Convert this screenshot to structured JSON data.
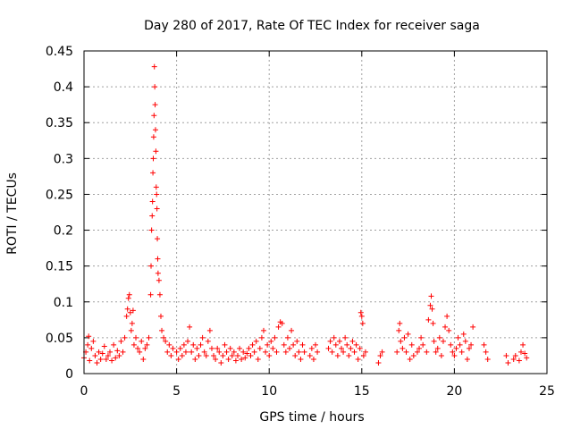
{
  "chart_data": {
    "type": "scatter",
    "title": "Day 280 of 2017, Rate Of TEC Index for receiver saga",
    "xlabel": "GPS time / hours",
    "ylabel": "ROTI / TECUs",
    "xlim": [
      0,
      25
    ],
    "ylim": [
      0,
      0.45
    ],
    "grid": true,
    "marker": "plus",
    "marker_color": "#ff0000",
    "x_ticks": [
      0,
      5,
      10,
      15,
      20,
      25
    ],
    "x_tick_labels": [
      "0",
      "5",
      "10",
      "15",
      "20",
      "25"
    ],
    "y_ticks": [
      0,
      0.05,
      0.1,
      0.15,
      0.2,
      0.25,
      0.3,
      0.35,
      0.4,
      0.45
    ],
    "y_tick_labels": [
      "0",
      "0.05",
      "0.1",
      "0.15",
      "0.2",
      "0.25",
      "0.3",
      "0.35",
      "0.4",
      "0.45"
    ],
    "series": [
      {
        "name": "ROTI",
        "points": [
          [
            0.0,
            0.022
          ],
          [
            0.1,
            0.03
          ],
          [
            0.2,
            0.04
          ],
          [
            0.25,
            0.052
          ],
          [
            0.3,
            0.018
          ],
          [
            0.4,
            0.035
          ],
          [
            0.5,
            0.045
          ],
          [
            0.6,
            0.025
          ],
          [
            0.7,
            0.015
          ],
          [
            0.8,
            0.03
          ],
          [
            0.9,
            0.02
          ],
          [
            1.0,
            0.028
          ],
          [
            1.1,
            0.038
          ],
          [
            1.2,
            0.02
          ],
          [
            1.3,
            0.025
          ],
          [
            1.4,
            0.03
          ],
          [
            1.5,
            0.018
          ],
          [
            1.6,
            0.04
          ],
          [
            1.7,
            0.022
          ],
          [
            1.8,
            0.032
          ],
          [
            1.9,
            0.025
          ],
          [
            2.0,
            0.045
          ],
          [
            2.1,
            0.03
          ],
          [
            2.2,
            0.05
          ],
          [
            2.3,
            0.08
          ],
          [
            2.35,
            0.09
          ],
          [
            2.4,
            0.105
          ],
          [
            2.45,
            0.11
          ],
          [
            2.5,
            0.085
          ],
          [
            2.55,
            0.06
          ],
          [
            2.6,
            0.07
          ],
          [
            2.65,
            0.088
          ],
          [
            2.7,
            0.04
          ],
          [
            2.8,
            0.05
          ],
          [
            2.9,
            0.035
          ],
          [
            3.0,
            0.03
          ],
          [
            3.1,
            0.045
          ],
          [
            3.2,
            0.02
          ],
          [
            3.3,
            0.035
          ],
          [
            3.4,
            0.04
          ],
          [
            3.5,
            0.05
          ],
          [
            3.6,
            0.11
          ],
          [
            3.62,
            0.15
          ],
          [
            3.65,
            0.2
          ],
          [
            3.68,
            0.22
          ],
          [
            3.7,
            0.24
          ],
          [
            3.72,
            0.28
          ],
          [
            3.74,
            0.3
          ],
          [
            3.76,
            0.33
          ],
          [
            3.78,
            0.36
          ],
          [
            3.8,
            0.428
          ],
          [
            3.82,
            0.4
          ],
          [
            3.84,
            0.375
          ],
          [
            3.86,
            0.34
          ],
          [
            3.88,
            0.31
          ],
          [
            3.9,
            0.26
          ],
          [
            3.92,
            0.25
          ],
          [
            3.94,
            0.23
          ],
          [
            3.96,
            0.188
          ],
          [
            3.98,
            0.16
          ],
          [
            4.0,
            0.14
          ],
          [
            4.05,
            0.13
          ],
          [
            4.1,
            0.11
          ],
          [
            4.15,
            0.08
          ],
          [
            4.2,
            0.06
          ],
          [
            4.3,
            0.05
          ],
          [
            4.4,
            0.045
          ],
          [
            4.5,
            0.03
          ],
          [
            4.6,
            0.04
          ],
          [
            4.7,
            0.025
          ],
          [
            4.8,
            0.035
          ],
          [
            5.0,
            0.03
          ],
          [
            5.1,
            0.02
          ],
          [
            5.2,
            0.035
          ],
          [
            5.3,
            0.025
          ],
          [
            5.4,
            0.04
          ],
          [
            5.5,
            0.03
          ],
          [
            5.6,
            0.045
          ],
          [
            5.7,
            0.065
          ],
          [
            5.8,
            0.03
          ],
          [
            5.9,
            0.04
          ],
          [
            6.0,
            0.02
          ],
          [
            6.1,
            0.035
          ],
          [
            6.2,
            0.025
          ],
          [
            6.3,
            0.04
          ],
          [
            6.4,
            0.05
          ],
          [
            6.5,
            0.03
          ],
          [
            6.6,
            0.025
          ],
          [
            6.7,
            0.045
          ],
          [
            6.8,
            0.06
          ],
          [
            6.9,
            0.035
          ],
          [
            7.0,
            0.025
          ],
          [
            7.1,
            0.02
          ],
          [
            7.2,
            0.035
          ],
          [
            7.3,
            0.03
          ],
          [
            7.4,
            0.015
          ],
          [
            7.5,
            0.025
          ],
          [
            7.6,
            0.04
          ],
          [
            7.7,
            0.03
          ],
          [
            7.8,
            0.02
          ],
          [
            7.9,
            0.035
          ],
          [
            8.0,
            0.025
          ],
          [
            8.1,
            0.03
          ],
          [
            8.2,
            0.018
          ],
          [
            8.3,
            0.025
          ],
          [
            8.4,
            0.035
          ],
          [
            8.5,
            0.02
          ],
          [
            8.6,
            0.03
          ],
          [
            8.7,
            0.022
          ],
          [
            8.8,
            0.028
          ],
          [
            8.9,
            0.035
          ],
          [
            9.0,
            0.025
          ],
          [
            9.1,
            0.04
          ],
          [
            9.2,
            0.03
          ],
          [
            9.3,
            0.045
          ],
          [
            9.4,
            0.02
          ],
          [
            9.5,
            0.035
          ],
          [
            9.6,
            0.05
          ],
          [
            9.7,
            0.06
          ],
          [
            9.8,
            0.03
          ],
          [
            9.9,
            0.04
          ],
          [
            10.0,
            0.025
          ],
          [
            10.1,
            0.045
          ],
          [
            10.2,
            0.035
          ],
          [
            10.3,
            0.05
          ],
          [
            10.4,
            0.03
          ],
          [
            10.5,
            0.065
          ],
          [
            10.6,
            0.072
          ],
          [
            10.7,
            0.07
          ],
          [
            10.8,
            0.04
          ],
          [
            10.9,
            0.03
          ],
          [
            11.0,
            0.05
          ],
          [
            11.1,
            0.035
          ],
          [
            11.2,
            0.06
          ],
          [
            11.3,
            0.04
          ],
          [
            11.4,
            0.025
          ],
          [
            11.5,
            0.045
          ],
          [
            11.6,
            0.03
          ],
          [
            11.7,
            0.02
          ],
          [
            11.8,
            0.04
          ],
          [
            11.9,
            0.03
          ],
          [
            12.2,
            0.025
          ],
          [
            12.3,
            0.035
          ],
          [
            12.4,
            0.02
          ],
          [
            12.5,
            0.04
          ],
          [
            12.6,
            0.03
          ],
          [
            13.2,
            0.035
          ],
          [
            13.3,
            0.045
          ],
          [
            13.4,
            0.03
          ],
          [
            13.5,
            0.05
          ],
          [
            13.6,
            0.04
          ],
          [
            13.7,
            0.025
          ],
          [
            13.8,
            0.045
          ],
          [
            13.9,
            0.035
          ],
          [
            14.0,
            0.03
          ],
          [
            14.1,
            0.05
          ],
          [
            14.2,
            0.04
          ],
          [
            14.3,
            0.025
          ],
          [
            14.4,
            0.035
          ],
          [
            14.5,
            0.045
          ],
          [
            14.6,
            0.03
          ],
          [
            14.7,
            0.04
          ],
          [
            14.8,
            0.02
          ],
          [
            14.9,
            0.035
          ],
          [
            14.95,
            0.085
          ],
          [
            15.0,
            0.08
          ],
          [
            15.05,
            0.07
          ],
          [
            15.1,
            0.025
          ],
          [
            15.2,
            0.03
          ],
          [
            15.9,
            0.015
          ],
          [
            16.0,
            0.025
          ],
          [
            16.1,
            0.03
          ],
          [
            16.9,
            0.03
          ],
          [
            17.0,
            0.06
          ],
          [
            17.05,
            0.07
          ],
          [
            17.1,
            0.045
          ],
          [
            17.2,
            0.035
          ],
          [
            17.3,
            0.05
          ],
          [
            17.4,
            0.03
          ],
          [
            17.5,
            0.055
          ],
          [
            17.6,
            0.02
          ],
          [
            17.7,
            0.04
          ],
          [
            17.8,
            0.025
          ],
          [
            18.0,
            0.03
          ],
          [
            18.1,
            0.035
          ],
          [
            18.2,
            0.05
          ],
          [
            18.3,
            0.04
          ],
          [
            18.5,
            0.03
          ],
          [
            18.6,
            0.075
          ],
          [
            18.7,
            0.095
          ],
          [
            18.75,
            0.108
          ],
          [
            18.8,
            0.09
          ],
          [
            18.85,
            0.07
          ],
          [
            18.9,
            0.045
          ],
          [
            19.0,
            0.03
          ],
          [
            19.1,
            0.035
          ],
          [
            19.2,
            0.05
          ],
          [
            19.3,
            0.025
          ],
          [
            19.4,
            0.045
          ],
          [
            19.5,
            0.065
          ],
          [
            19.6,
            0.08
          ],
          [
            19.7,
            0.06
          ],
          [
            19.8,
            0.04
          ],
          [
            19.9,
            0.03
          ],
          [
            20.0,
            0.025
          ],
          [
            20.1,
            0.035
          ],
          [
            20.2,
            0.05
          ],
          [
            20.3,
            0.04
          ],
          [
            20.4,
            0.03
          ],
          [
            20.5,
            0.055
          ],
          [
            20.6,
            0.045
          ],
          [
            20.7,
            0.02
          ],
          [
            20.8,
            0.035
          ],
          [
            20.9,
            0.04
          ],
          [
            21.0,
            0.065
          ],
          [
            21.6,
            0.04
          ],
          [
            21.7,
            0.03
          ],
          [
            21.8,
            0.02
          ],
          [
            22.8,
            0.025
          ],
          [
            22.9,
            0.015
          ],
          [
            23.2,
            0.02
          ],
          [
            23.3,
            0.025
          ],
          [
            23.5,
            0.018
          ],
          [
            23.6,
            0.03
          ],
          [
            23.7,
            0.04
          ],
          [
            23.8,
            0.028
          ],
          [
            23.9,
            0.022
          ]
        ]
      }
    ]
  }
}
